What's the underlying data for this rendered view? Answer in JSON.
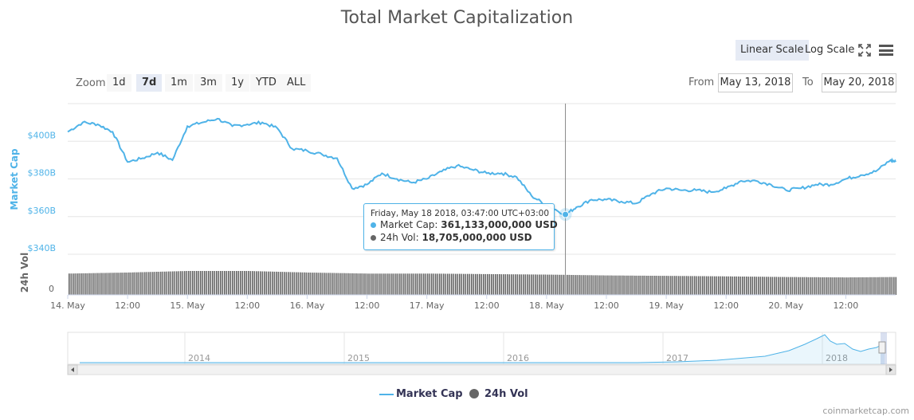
{
  "title": "Total Market Capitalization",
  "scale": {
    "linear_label": "Linear Scale",
    "log_label": "Log Scale",
    "active": "linear"
  },
  "zoom": {
    "label": "Zoom",
    "buttons": [
      "1d",
      "7d",
      "1m",
      "3m",
      "1y",
      "YTD",
      "ALL"
    ],
    "active": "7d"
  },
  "range": {
    "from_label": "From",
    "from_value": "May 13, 2018",
    "to_label": "To",
    "to_value": "May 20, 2018"
  },
  "tooltip": {
    "date": "Friday, May 18 2018, 03:47:00 UTC+03:00",
    "market_cap_label": "Market Cap:",
    "market_cap_value": "361,133,000,000 USD",
    "volume_label": "24h Vol:",
    "volume_value": "18,705,000,000 USD"
  },
  "legend": {
    "market_cap": "Market Cap",
    "volume": "24h Vol"
  },
  "credit": "coinmarketcap.com",
  "colors": {
    "market_cap": "#4fb3e8",
    "volume": "#666666",
    "accent_bg": "#e6ebf5"
  },
  "chart_data": {
    "type": "line",
    "y_axis_title": "Market Cap",
    "y_ticks": [
      "$340B",
      "$360B",
      "$380B",
      "$400B"
    ],
    "ylim": [
      340,
      420
    ],
    "x_ticks": [
      "14. May",
      "12:00",
      "15. May",
      "12:00",
      "16. May",
      "12:00",
      "17. May",
      "12:00",
      "18. May",
      "12:00",
      "19. May",
      "12:00",
      "20. May",
      "12:00"
    ],
    "x_start": "2018-05-14 00:00",
    "x_end": "2018-05-20 22:00",
    "series": [
      {
        "name": "Market Cap",
        "unit": "billion USD",
        "x": [
          "2018-05-14 00:00",
          "2018-05-14 03:00",
          "2018-05-14 06:00",
          "2018-05-14 09:00",
          "2018-05-14 12:00",
          "2018-05-14 15:00",
          "2018-05-14 18:00",
          "2018-05-14 21:00",
          "2018-05-15 00:00",
          "2018-05-15 03:00",
          "2018-05-15 06:00",
          "2018-05-15 09:00",
          "2018-05-15 12:00",
          "2018-05-15 15:00",
          "2018-05-15 18:00",
          "2018-05-15 21:00",
          "2018-05-16 00:00",
          "2018-05-16 03:00",
          "2018-05-16 06:00",
          "2018-05-16 09:00",
          "2018-05-16 12:00",
          "2018-05-16 15:00",
          "2018-05-16 18:00",
          "2018-05-16 21:00",
          "2018-05-17 00:00",
          "2018-05-17 03:00",
          "2018-05-17 06:00",
          "2018-05-17 09:00",
          "2018-05-17 12:00",
          "2018-05-17 15:00",
          "2018-05-17 18:00",
          "2018-05-17 21:00",
          "2018-05-18 00:00",
          "2018-05-18 03:47",
          "2018-05-18 06:00",
          "2018-05-18 09:00",
          "2018-05-18 12:00",
          "2018-05-18 15:00",
          "2018-05-18 18:00",
          "2018-05-18 21:00",
          "2018-05-19 00:00",
          "2018-05-19 03:00",
          "2018-05-19 06:00",
          "2018-05-19 09:00",
          "2018-05-19 12:00",
          "2018-05-19 15:00",
          "2018-05-19 18:00",
          "2018-05-19 21:00",
          "2018-05-20 00:00",
          "2018-05-20 03:00",
          "2018-05-20 06:00",
          "2018-05-20 09:00",
          "2018-05-20 12:00",
          "2018-05-20 15:00",
          "2018-05-20 18:00",
          "2018-05-20 21:00",
          "2018-05-20 22:00"
        ],
        "values": [
          405,
          410,
          409,
          405,
          389,
          391,
          394,
          390,
          408,
          410,
          412,
          408,
          409,
          410,
          407,
          396,
          395,
          393,
          391,
          375,
          377,
          383,
          380,
          378,
          380,
          384,
          387,
          385,
          383,
          383,
          381,
          371,
          366,
          361.1,
          365,
          369,
          369,
          368,
          367,
          372,
          375,
          374,
          374,
          373,
          375,
          379,
          379,
          377,
          374,
          375,
          377,
          377,
          380,
          382,
          384,
          390,
          389
        ]
      },
      {
        "name": "24h Vol",
        "unit": "billion USD",
        "x": [
          "2018-05-14 00:00",
          "2018-05-14 12:00",
          "2018-05-15 00:00",
          "2018-05-15 12:00",
          "2018-05-16 00:00",
          "2018-05-16 12:00",
          "2018-05-17 00:00",
          "2018-05-17 12:00",
          "2018-05-18 00:00",
          "2018-05-18 12:00",
          "2018-05-19 00:00",
          "2018-05-19 12:00",
          "2018-05-20 00:00",
          "2018-05-20 12:00",
          "2018-05-20 22:00"
        ],
        "values": [
          20.5,
          21.5,
          23,
          23,
          21.5,
          20.5,
          20.5,
          20,
          19.5,
          18.7,
          18.3,
          17.8,
          17.2,
          16.8,
          17.2
        ]
      }
    ],
    "volume_axis": {
      "title": "24h Vol",
      "tick": "0"
    },
    "navigator": {
      "labels": [
        "2014",
        "2015",
        "2016",
        "2017",
        "2018"
      ]
    },
    "grid": true,
    "legend_position": "bottom-center"
  }
}
